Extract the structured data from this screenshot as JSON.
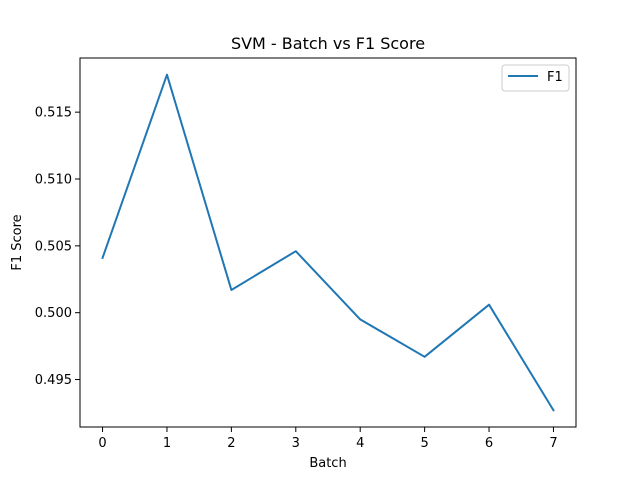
{
  "chart_data": {
    "type": "line",
    "title": "SVM - Batch vs F1 Score",
    "xlabel": "Batch",
    "ylabel": "F1 Score",
    "x": [
      0,
      1,
      2,
      3,
      4,
      5,
      6,
      7
    ],
    "series": [
      {
        "name": "F1",
        "color": "#1f77b4",
        "values": [
          0.5041,
          0.5178,
          0.5017,
          0.5046,
          0.4995,
          0.4967,
          0.5006,
          0.4927
        ]
      }
    ],
    "xlim": [
      -0.35,
      7.35
    ],
    "ylim": [
      0.49145,
      0.51905
    ],
    "x_ticks": [
      0,
      1,
      2,
      3,
      4,
      5,
      6,
      7
    ],
    "x_tick_labels": [
      "0",
      "1",
      "2",
      "3",
      "4",
      "5",
      "6",
      "7"
    ],
    "y_ticks": [
      0.495,
      0.5,
      0.505,
      0.51,
      0.515
    ],
    "y_tick_labels": [
      "0.495",
      "0.500",
      "0.505",
      "0.510",
      "0.515"
    ],
    "grid": false,
    "legend_position": "top-right"
  }
}
